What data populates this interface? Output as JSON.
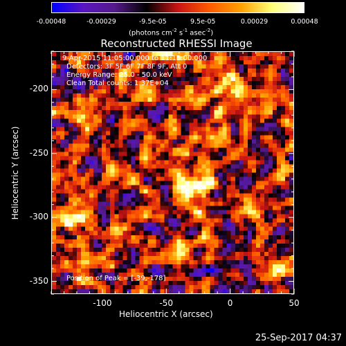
{
  "colorbar": {
    "ticks": [
      "-0.00048",
      "-0.00029",
      "-9.5e-05",
      "9.5e-05",
      "0.00029",
      "0.00048"
    ],
    "units_main": "(photons cm",
    "units_exp1": "-2",
    "units_mid": " s",
    "units_exp2": "-1",
    "units_asec": " asec",
    "units_exp3": "-2",
    "units_close": ")",
    "colors": [
      "#0000ff",
      "#5a16c0",
      "#551a8b",
      "#000000",
      "#c81414",
      "#ff5a00",
      "#ffa000",
      "#ffff78",
      "#ffffff"
    ]
  },
  "annotations": {
    "time": "9-Apr-2015 11:05:00.000 to 11:15:00.000",
    "detectors": "Detectors: 3F 5F 6F 7F 8F 9F, Att 0",
    "energy": "Energy Range: 25.0 - 50.0 keV",
    "clean": "Clean     Total counts: 1.37E+04",
    "peak": "Position of Peak = [-39,-178]"
  },
  "footer": {
    "timestamp": "25-Sep-2017 04:37"
  },
  "chart_data": {
    "type": "heatmap",
    "title": "Reconstructed RHESSI Image",
    "xlabel": "Heliocentric X (arcsec)",
    "ylabel": "Heliocentric Y (arcsec)",
    "xlim": [
      -140,
      50
    ],
    "ylim": [
      -360,
      -170
    ],
    "xticks": [
      "-100",
      "-50",
      "0",
      "50"
    ],
    "yticks": [
      "-200",
      "-250",
      "-300",
      "-350"
    ],
    "zlim": [
      -0.00048,
      0.00048
    ],
    "peak": {
      "x": -39,
      "y": -178,
      "value": 0.00048
    }
  }
}
